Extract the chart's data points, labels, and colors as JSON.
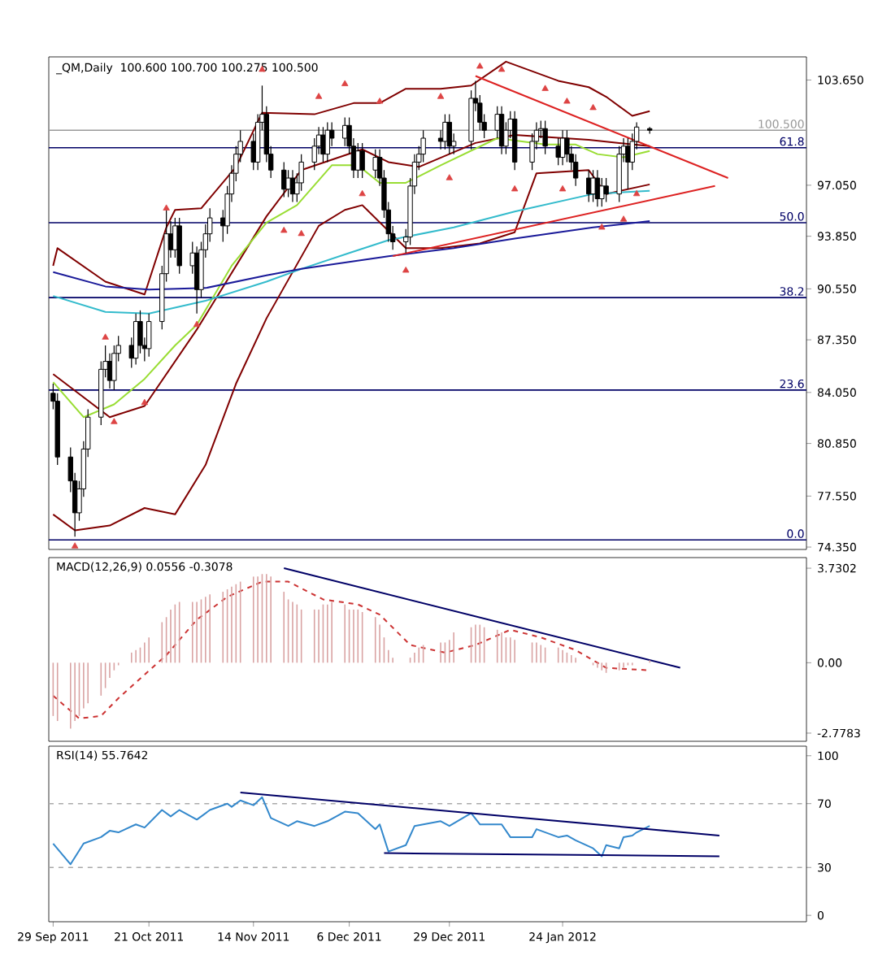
{
  "chart_data": [
    {
      "type": "candlestick",
      "title": "_QM,Daily",
      "subtitle": "100.600 100.700 100.275 100.500",
      "color": "#000000",
      "x": [
        "2011-09-29",
        "2011-09-30",
        "2011-10-03",
        "2011-10-04",
        "2011-10-05",
        "2011-10-06",
        "2011-10-07",
        "2011-10-10",
        "2011-10-11",
        "2011-10-12",
        "2011-10-13",
        "2011-10-14",
        "2011-10-17",
        "2011-10-18",
        "2011-10-19",
        "2011-10-20",
        "2011-10-21",
        "2011-10-24",
        "2011-10-25",
        "2011-10-26",
        "2011-10-27",
        "2011-10-28",
        "2011-10-31",
        "2011-11-01",
        "2011-11-02",
        "2011-11-03",
        "2011-11-04",
        "2011-11-07",
        "2011-11-08",
        "2011-11-09",
        "2011-11-10",
        "2011-11-11",
        "2011-11-14",
        "2011-11-15",
        "2011-11-16",
        "2011-11-17",
        "2011-11-18",
        "2011-11-21",
        "2011-11-22",
        "2011-11-23",
        "2011-11-24",
        "2011-11-25",
        "2011-11-28",
        "2011-11-29",
        "2011-11-30",
        "2011-12-01",
        "2011-12-02",
        "2011-12-05",
        "2011-12-06",
        "2011-12-07",
        "2011-12-08",
        "2011-12-09",
        "2011-12-12",
        "2011-12-13",
        "2011-12-14",
        "2011-12-15",
        "2011-12-16",
        "2011-12-19",
        "2011-12-20",
        "2011-12-21",
        "2011-12-22",
        "2011-12-23",
        "2011-12-27",
        "2011-12-28",
        "2011-12-29",
        "2011-12-30",
        "2012-01-03",
        "2012-01-04",
        "2012-01-05",
        "2012-01-06",
        "2012-01-09",
        "2012-01-10",
        "2012-01-11",
        "2012-01-12",
        "2012-01-13",
        "2012-01-17",
        "2012-01-18",
        "2012-01-19",
        "2012-01-20",
        "2012-01-23",
        "2012-01-24",
        "2012-01-25",
        "2012-01-26",
        "2012-01-27",
        "2012-01-30",
        "2012-01-31",
        "2012-02-01",
        "2012-02-02",
        "2012-02-03",
        "2012-02-06",
        "2012-02-07",
        "2012-02-08",
        "2012-02-09",
        "2012-02-10",
        "2012-02-13"
      ],
      "ohlc": [
        [
          84.0,
          84.6,
          83.0,
          83.5
        ],
        [
          83.5,
          84.0,
          79.5,
          80.0
        ],
        [
          80.0,
          80.6,
          77.8,
          78.5
        ],
        [
          78.5,
          79.0,
          75.0,
          76.5
        ],
        [
          76.5,
          78.5,
          76.0,
          78.0
        ],
        [
          78.0,
          81.0,
          77.5,
          80.5
        ],
        [
          80.5,
          83.0,
          80.0,
          82.5
        ],
        [
          82.5,
          86.0,
          82.0,
          85.5
        ],
        [
          85.5,
          87.0,
          85.0,
          86.0
        ],
        [
          86.0,
          86.5,
          84.3,
          84.8
        ],
        [
          84.8,
          87.0,
          84.2,
          86.5
        ],
        [
          86.5,
          87.6,
          86.0,
          87.0
        ],
        [
          87.0,
          87.5,
          85.6,
          86.2
        ],
        [
          86.2,
          89.0,
          85.8,
          88.5
        ],
        [
          88.5,
          89.2,
          86.5,
          87.0
        ],
        [
          87.0,
          87.5,
          86.0,
          86.8
        ],
        [
          86.8,
          89.0,
          86.3,
          88.5
        ],
        [
          88.5,
          92.0,
          88.0,
          91.5
        ],
        [
          91.5,
          95.5,
          91.0,
          94.0
        ],
        [
          94.0,
          94.8,
          92.5,
          93.0
        ],
        [
          93.0,
          95.0,
          92.5,
          94.5
        ],
        [
          94.5,
          95.0,
          91.5,
          92.0
        ],
        [
          92.0,
          93.5,
          91.5,
          92.8
        ],
        [
          92.8,
          93.2,
          89.0,
          90.5
        ],
        [
          90.5,
          93.5,
          90.0,
          93.0
        ],
        [
          93.0,
          94.6,
          92.5,
          94.0
        ],
        [
          94.0,
          95.6,
          93.5,
          95.0
        ],
        [
          95.0,
          95.5,
          93.5,
          94.5
        ],
        [
          94.5,
          97.0,
          94.0,
          96.5
        ],
        [
          96.5,
          98.3,
          96.0,
          97.8
        ],
        [
          97.8,
          99.5,
          97.3,
          99.0
        ],
        [
          99.0,
          100.5,
          98.5,
          99.8
        ],
        [
          99.8,
          100.3,
          98.0,
          98.5
        ],
        [
          98.5,
          101.5,
          98.0,
          101.0
        ],
        [
          101.0,
          103.3,
          100.5,
          101.5
        ],
        [
          101.5,
          102.0,
          98.5,
          99.0
        ],
        [
          99.0,
          99.5,
          97.5,
          98.0
        ],
        [
          98.0,
          98.5,
          96.3,
          96.8
        ],
        [
          96.8,
          98.0,
          96.3,
          97.5
        ],
        [
          97.5,
          98.0,
          96.0,
          96.5
        ],
        [
          96.5,
          97.8,
          96.0,
          97.2
        ],
        [
          97.2,
          99.0,
          96.7,
          98.5
        ],
        [
          98.5,
          100.0,
          98.0,
          99.5
        ],
        [
          99.5,
          100.7,
          99.0,
          100.2
        ],
        [
          100.2,
          100.7,
          98.5,
          99.0
        ],
        [
          99.0,
          101.0,
          98.5,
          100.5
        ],
        [
          100.5,
          101.0,
          99.5,
          100.0
        ],
        [
          100.0,
          101.3,
          99.5,
          100.8
        ],
        [
          100.8,
          101.3,
          99.0,
          99.5
        ],
        [
          99.5,
          100.0,
          97.5,
          98.0
        ],
        [
          98.0,
          99.7,
          97.5,
          99.2
        ],
        [
          99.2,
          99.7,
          97.5,
          98.0
        ],
        [
          98.0,
          99.3,
          97.5,
          98.8
        ],
        [
          98.8,
          99.3,
          97.0,
          97.5
        ],
        [
          97.5,
          98.0,
          95.0,
          95.5
        ],
        [
          95.5,
          96.0,
          93.5,
          94.0
        ],
        [
          94.0,
          94.5,
          93.0,
          93.5
        ],
        [
          93.5,
          94.3,
          92.8,
          93.8
        ],
        [
          93.8,
          97.5,
          93.3,
          97.0
        ],
        [
          97.0,
          99.0,
          96.5,
          98.5
        ],
        [
          98.5,
          99.5,
          98.0,
          99.0
        ],
        [
          99.0,
          100.5,
          98.5,
          100.0
        ],
        [
          100.0,
          100.5,
          99.3,
          99.8
        ],
        [
          99.8,
          101.5,
          99.3,
          101.0
        ],
        [
          101.0,
          101.5,
          99.0,
          99.5
        ],
        [
          99.5,
          100.3,
          99.0,
          99.8
        ],
        [
          99.8,
          103.0,
          99.3,
          102.5
        ],
        [
          102.5,
          103.6,
          101.7,
          102.2
        ],
        [
          102.2,
          102.7,
          100.5,
          101.0
        ],
        [
          101.0,
          101.5,
          100.0,
          100.5
        ],
        [
          100.5,
          102.0,
          100.0,
          101.5
        ],
        [
          101.5,
          102.0,
          99.0,
          99.5
        ],
        [
          99.5,
          101.0,
          99.0,
          100.5
        ],
        [
          100.5,
          101.7,
          100.0,
          101.2
        ],
        [
          101.2,
          101.7,
          98.0,
          98.5
        ],
        [
          98.5,
          100.3,
          98.0,
          99.8
        ],
        [
          99.8,
          101.0,
          99.3,
          100.5
        ],
        [
          100.5,
          101.1,
          100.0,
          100.6
        ],
        [
          100.6,
          101.1,
          99.0,
          99.5
        ],
        [
          99.5,
          100.0,
          98.3,
          98.8
        ],
        [
          98.8,
          100.5,
          98.3,
          100.0
        ],
        [
          100.0,
          100.5,
          98.5,
          99.0
        ],
        [
          99.0,
          99.5,
          98.0,
          98.5
        ],
        [
          98.5,
          99.0,
          97.0,
          97.5
        ],
        [
          97.5,
          98.0,
          96.0,
          96.5
        ],
        [
          96.5,
          98.0,
          96.0,
          97.5
        ],
        [
          97.5,
          98.0,
          95.7,
          96.2
        ],
        [
          96.2,
          97.5,
          95.7,
          97.0
        ],
        [
          97.0,
          97.5,
          96.0,
          96.5
        ],
        [
          96.5,
          99.5,
          96.0,
          99.0
        ],
        [
          99.0,
          100.0,
          98.5,
          99.5
        ],
        [
          99.5,
          100.0,
          96.8,
          98.5
        ],
        [
          98.5,
          100.3,
          98.0,
          99.8
        ],
        [
          99.8,
          101.0,
          99.3,
          100.7
        ],
        [
          100.6,
          100.7,
          100.275,
          100.5
        ]
      ],
      "series": [
        {
          "type": "line",
          "color": "#800000",
          "x": [
            "2011-09-29",
            "2011-09-30",
            "2011-10-11",
            "2011-10-20",
            "2011-10-25",
            "2011-10-27",
            "2011-11-02",
            "2011-11-10",
            "2011-11-16",
            "2011-11-28",
            "2011-12-07",
            "2011-12-13",
            "2011-12-19",
            "2011-12-27",
            "2012-01-03",
            "2012-01-11",
            "2012-01-23",
            "2012-01-30",
            "2012-02-03",
            "2012-02-09",
            "2012-02-13"
          ],
          "values": [
            92.0,
            93.1,
            91.0,
            90.2,
            94.4,
            95.5,
            95.6,
            98.2,
            101.6,
            101.5,
            102.2,
            102.2,
            103.1,
            103.1,
            103.3,
            104.8,
            103.6,
            103.2,
            102.6,
            101.4,
            101.7
          ]
        },
        {
          "type": "line",
          "color": "#800000",
          "x": [
            "2011-09-29",
            "2011-10-12",
            "2011-10-20",
            "2011-11-01",
            "2011-11-17",
            "2011-11-25",
            "2011-12-09",
            "2011-12-15",
            "2011-12-22",
            "2012-01-04",
            "2012-01-13",
            "2012-01-30",
            "2012-02-13"
          ],
          "values": [
            85.2,
            82.5,
            83.2,
            88.0,
            95.1,
            98.0,
            99.3,
            98.5,
            98.2,
            99.7,
            100.2,
            99.9,
            99.5
          ]
        },
        {
          "type": "line",
          "color": "#800000",
          "x": [
            "2011-09-29",
            "2011-10-04",
            "2011-10-12",
            "2011-10-20",
            "2011-10-27",
            "2011-11-03",
            "2011-11-10",
            "2011-11-17",
            "2011-11-29",
            "2011-12-05",
            "2011-12-09",
            "2011-12-19",
            "2011-12-27",
            "2012-01-05",
            "2012-01-13",
            "2012-01-18",
            "2012-01-30",
            "2012-02-03",
            "2012-02-13"
          ],
          "values": [
            76.4,
            75.4,
            75.7,
            76.8,
            76.4,
            79.5,
            84.6,
            88.7,
            94.5,
            95.5,
            95.8,
            93.1,
            93.1,
            93.4,
            94.1,
            97.8,
            98.0,
            96.5,
            97.1
          ]
        },
        {
          "type": "line",
          "color": "#99dd33",
          "x": [
            "2011-09-29",
            "2011-10-06",
            "2011-10-13",
            "2011-10-20",
            "2011-10-27",
            "2011-11-01",
            "2011-11-09",
            "2011-11-17",
            "2011-11-24",
            "2011-12-02",
            "2011-12-08",
            "2011-12-13",
            "2011-12-19",
            "2011-12-27",
            "2012-01-09",
            "2012-01-20",
            "2012-01-27",
            "2012-02-01",
            "2012-02-07",
            "2012-02-13"
          ],
          "values": [
            84.7,
            82.5,
            83.3,
            84.9,
            87.0,
            88.3,
            92.0,
            94.7,
            95.8,
            98.3,
            98.3,
            97.2,
            97.2,
            98.3,
            100.0,
            99.6,
            99.6,
            99.0,
            98.8,
            99.2
          ]
        },
        {
          "type": "line",
          "color": "#33bbcc",
          "x": [
            "2011-09-29",
            "2011-10-11",
            "2011-10-21",
            "2011-11-03",
            "2011-11-17",
            "2011-11-25",
            "2011-12-06",
            "2011-12-15",
            "2011-12-30",
            "2012-01-13",
            "2012-01-31",
            "2012-02-13"
          ],
          "values": [
            90.1,
            89.1,
            89.0,
            89.8,
            91.0,
            91.8,
            92.8,
            93.6,
            94.4,
            95.4,
            96.5,
            96.7
          ]
        },
        {
          "type": "line",
          "color": "#1a1a99",
          "x": [
            "2011-09-29",
            "2011-10-11",
            "2011-10-21",
            "2011-11-03",
            "2011-11-17",
            "2011-11-25",
            "2011-12-15",
            "2011-12-30",
            "2012-01-13",
            "2012-01-31",
            "2012-02-13"
          ],
          "values": [
            91.6,
            90.7,
            90.5,
            90.6,
            91.4,
            91.8,
            92.6,
            93.1,
            93.7,
            94.4,
            94.8
          ]
        },
        {
          "type": "line",
          "color": "#dd2222",
          "x": [
            "2012-01-04",
            "2012-03-02"
          ],
          "values": [
            103.9,
            97.5
          ]
        },
        {
          "type": "line",
          "color": "#dd2222",
          "x": [
            "2011-12-16",
            "2012-02-28"
          ],
          "values": [
            92.6,
            97.0
          ]
        },
        {
          "type": "scatter",
          "color": "#dd4444",
          "marker": "triangle",
          "x": [
            "2011-10-11",
            "2011-10-25",
            "2011-11-16",
            "2011-11-29",
            "2011-12-05",
            "2011-12-13",
            "2011-12-27",
            "2012-01-05",
            "2012-01-10",
            "2012-01-20",
            "2012-01-25",
            "2012-01-31"
          ],
          "values": [
            87.5,
            95.6,
            104.3,
            102.6,
            103.4,
            102.3,
            102.6,
            104.5,
            104.3,
            103.1,
            102.3,
            101.9
          ]
        },
        {
          "type": "scatter",
          "color": "#dd4444",
          "marker": "triangle",
          "x": [
            "2011-10-04",
            "2011-10-13",
            "2011-10-20",
            "2011-11-01",
            "2011-11-21",
            "2011-11-25",
            "2011-12-09",
            "2011-12-19",
            "2011-12-29",
            "2012-01-13",
            "2012-01-24",
            "2012-02-02",
            "2012-02-07",
            "2012-02-10"
          ],
          "values": [
            74.4,
            82.2,
            83.4,
            88.3,
            94.2,
            94.0,
            96.5,
            91.7,
            97.5,
            96.8,
            96.8,
            94.4,
            94.9,
            96.5
          ]
        }
      ],
      "ref_lines": [
        {
          "axis": "y",
          "value": 74.8,
          "color": "#000066"
        },
        {
          "axis": "y",
          "value": 84.2,
          "color": "#000066"
        },
        {
          "axis": "y",
          "value": 90.0,
          "color": "#000066"
        },
        {
          "axis": "y",
          "value": 94.7,
          "color": "#000066"
        },
        {
          "axis": "y",
          "value": 99.4,
          "color": "#000066"
        },
        {
          "axis": "y",
          "value": 100.5,
          "label": "100.500",
          "color": "#999999"
        }
      ],
      "annotations": [
        {
          "text": "0.0",
          "x": "2012-03-20",
          "y": 74.8
        },
        {
          "text": "23.6",
          "x": "2012-03-20",
          "y": 84.2
        },
        {
          "text": "38.2",
          "x": "2012-03-20",
          "y": 90.0
        },
        {
          "text": "50.0",
          "x": "2012-03-20",
          "y": 94.7
        },
        {
          "text": "61.8",
          "x": "2012-03-20",
          "y": 99.4
        }
      ],
      "xlim": [
        "2011-09-28",
        "2012-03-20"
      ],
      "ylim": [
        74.2,
        105.1
      ],
      "yticks": [
        {
          "value": 103.65,
          "label": "103.650"
        },
        {
          "value": 97.05,
          "label": "97.050"
        },
        {
          "value": 93.85,
          "label": "93.850"
        },
        {
          "value": 90.55,
          "label": "90.550"
        },
        {
          "value": 87.35,
          "label": "87.350"
        },
        {
          "value": 84.05,
          "label": "84.050"
        },
        {
          "value": 80.85,
          "label": "80.850"
        },
        {
          "value": 77.55,
          "label": "77.550"
        },
        {
          "value": 74.35,
          "label": "74.350"
        }
      ],
      "tick_labels": "y"
    },
    {
      "type": "bar",
      "title": "MACD(12,26,9) 0.0556 -0.3078",
      "x": [
        "2011-09-29",
        "2011-09-30",
        "2011-10-03",
        "2011-10-04",
        "2011-10-05",
        "2011-10-06",
        "2011-10-07",
        "2011-10-10",
        "2011-10-11",
        "2011-10-12",
        "2011-10-13",
        "2011-10-14",
        "2011-10-17",
        "2011-10-18",
        "2011-10-19",
        "2011-10-20",
        "2011-10-21",
        "2011-10-24",
        "2011-10-25",
        "2011-10-26",
        "2011-10-27",
        "2011-10-28",
        "2011-10-31",
        "2011-11-01",
        "2011-11-02",
        "2011-11-03",
        "2011-11-04",
        "2011-11-07",
        "2011-11-08",
        "2011-11-09",
        "2011-11-10",
        "2011-11-11",
        "2011-11-14",
        "2011-11-15",
        "2011-11-16",
        "2011-11-17",
        "2011-11-18",
        "2011-11-21",
        "2011-11-22",
        "2011-11-23",
        "2011-11-24",
        "2011-11-25",
        "2011-11-28",
        "2011-11-29",
        "2011-11-30",
        "2011-12-01",
        "2011-12-02",
        "2011-12-05",
        "2011-12-06",
        "2011-12-07",
        "2011-12-08",
        "2011-12-09",
        "2011-12-12",
        "2011-12-13",
        "2011-12-14",
        "2011-12-15",
        "2011-12-16",
        "2011-12-19",
        "2011-12-20",
        "2011-12-21",
        "2011-12-22",
        "2011-12-23",
        "2011-12-27",
        "2011-12-28",
        "2011-12-29",
        "2011-12-30",
        "2012-01-03",
        "2012-01-04",
        "2012-01-05",
        "2012-01-06",
        "2012-01-09",
        "2012-01-10",
        "2012-01-11",
        "2012-01-12",
        "2012-01-13",
        "2012-01-17",
        "2012-01-18",
        "2012-01-19",
        "2012-01-20",
        "2012-01-23",
        "2012-01-24",
        "2012-01-25",
        "2012-01-26",
        "2012-01-27",
        "2012-01-30",
        "2012-01-31",
        "2012-02-01",
        "2012-02-02",
        "2012-02-03",
        "2012-02-06",
        "2012-02-07",
        "2012-02-08",
        "2012-02-09",
        "2012-02-10",
        "2012-02-13"
      ],
      "series": [
        {
          "color": "#d9a3a3",
          "values": [
            -2.1,
            -2.3,
            -2.6,
            -2.3,
            -2.1,
            -1.8,
            -1.6,
            -1.3,
            -1.0,
            -0.6,
            -0.3,
            -0.1,
            0.4,
            0.5,
            0.6,
            0.8,
            1.0,
            1.6,
            1.8,
            2.1,
            2.3,
            2.4,
            2.4,
            2.4,
            2.5,
            2.6,
            2.7,
            2.8,
            2.9,
            3.0,
            3.1,
            3.2,
            3.4,
            3.4,
            3.5,
            3.5,
            3.4,
            2.8,
            2.5,
            2.4,
            2.3,
            2.1,
            2.1,
            2.1,
            2.3,
            2.3,
            2.4,
            2.3,
            2.1,
            2.1,
            2.1,
            2.0,
            1.8,
            1.5,
            1.0,
            0.5,
            0.2,
            0.0,
            0.2,
            0.4,
            0.6,
            0.7,
            0.8,
            0.8,
            0.9,
            1.2,
            1.4,
            1.5,
            1.5,
            1.4,
            1.3,
            1.2,
            1.0,
            1.0,
            0.9,
            0.8,
            0.8,
            0.7,
            0.6,
            0.6,
            0.5,
            0.4,
            0.3,
            0.2,
            0.0,
            -0.1,
            -0.2,
            -0.3,
            -0.4,
            -0.3,
            -0.2,
            -0.1,
            -0.1,
            0.0,
            0.1
          ]
        },
        {
          "type": "line",
          "color": "#cc3333",
          "line_style": "dashed",
          "x": [
            "2011-09-29",
            "2011-10-05",
            "2011-10-10",
            "2011-10-14",
            "2011-10-25",
            "2011-11-01",
            "2011-11-08",
            "2011-11-16",
            "2011-11-22",
            "2011-11-30",
            "2011-12-08",
            "2011-12-13",
            "2011-12-20",
            "2011-12-28",
            "2012-01-04",
            "2012-01-12",
            "2012-01-19",
            "2012-01-27",
            "2012-02-03",
            "2012-02-13"
          ],
          "values": [
            -1.3,
            -2.2,
            -2.1,
            -1.4,
            0.3,
            1.7,
            2.6,
            3.2,
            3.2,
            2.5,
            2.3,
            1.9,
            0.7,
            0.4,
            0.7,
            1.3,
            1.0,
            0.5,
            -0.2,
            -0.3
          ]
        },
        {
          "type": "line",
          "color": "#000066",
          "x": [
            "2011-11-21",
            "2012-02-20"
          ],
          "values": [
            3.73,
            -0.2
          ]
        }
      ],
      "xlim": [
        "2011-09-28",
        "2012-03-20"
      ],
      "ylim": [
        -3.1,
        4.15
      ],
      "yticks": [
        3.7302,
        {
          "value": 0,
          "label": "0.00"
        },
        -2.7783
      ],
      "tick_labels": "y"
    },
    {
      "type": "line",
      "title": "RSI(14) 55.7642",
      "series": [
        {
          "color": "#3388cc",
          "x": [
            "2011-09-29",
            "2011-10-03",
            "2011-10-06",
            "2011-10-10",
            "2011-10-12",
            "2011-10-14",
            "2011-10-18",
            "2011-10-20",
            "2011-10-24",
            "2011-10-26",
            "2011-10-28",
            "2011-11-01",
            "2011-11-04",
            "2011-11-08",
            "2011-11-09",
            "2011-11-11",
            "2011-11-14",
            "2011-11-16",
            "2011-11-18",
            "2011-11-22",
            "2011-11-24",
            "2011-11-28",
            "2011-12-01",
            "2011-12-05",
            "2011-12-08",
            "2011-12-12",
            "2011-12-13",
            "2011-12-15",
            "2011-12-19",
            "2011-12-21",
            "2011-12-27",
            "2011-12-29",
            "2012-01-03",
            "2012-01-05",
            "2012-01-10",
            "2012-01-12",
            "2012-01-17",
            "2012-01-18",
            "2012-01-23",
            "2012-01-25",
            "2012-01-27",
            "2012-01-31",
            "2012-02-02",
            "2012-02-03",
            "2012-02-06",
            "2012-02-07",
            "2012-02-09",
            "2012-02-10",
            "2012-02-13"
          ],
          "values": [
            45,
            32,
            45,
            49,
            53,
            52,
            57,
            55,
            66,
            62,
            66,
            60,
            66,
            70,
            68,
            72,
            69,
            74,
            61,
            56,
            59,
            56,
            59,
            65,
            64,
            54,
            57,
            40,
            44,
            56,
            59,
            56,
            64,
            57,
            57,
            49,
            49,
            54,
            49,
            50,
            47,
            42,
            37,
            44,
            42,
            49,
            50,
            52,
            56
          ]
        },
        {
          "color": "#000066",
          "x": [
            "2011-11-11",
            "2012-02-29"
          ],
          "values": [
            77,
            50
          ]
        },
        {
          "color": "#000066",
          "x": [
            "2011-12-14",
            "2012-02-29"
          ],
          "values": [
            39,
            37
          ]
        }
      ],
      "ref_lines": [
        {
          "axis": "y",
          "value": 70,
          "color": "#aaaaaa",
          "line_style": "dashed"
        },
        {
          "axis": "y",
          "value": 30,
          "color": "#aaaaaa",
          "line_style": "dashed"
        }
      ],
      "xlim": [
        "2011-09-28",
        "2012-03-20"
      ],
      "xticks": [
        {
          "value": "2011-09-29",
          "label": "29 Sep 2011"
        },
        {
          "value": "2011-10-21",
          "label": "21 Oct 2011"
        },
        {
          "value": "2011-11-14",
          "label": "14 Nov 2011"
        },
        {
          "value": "2011-12-06",
          "label": "6 Dec 2011"
        },
        {
          "value": "2011-12-29",
          "label": "29 Dec 2011"
        },
        {
          "value": "2012-01-24",
          "label": "24 Jan 2012"
        }
      ],
      "ylim": [
        -4,
        106
      ],
      "yticks": [
        0,
        30,
        70,
        100
      ]
    }
  ]
}
